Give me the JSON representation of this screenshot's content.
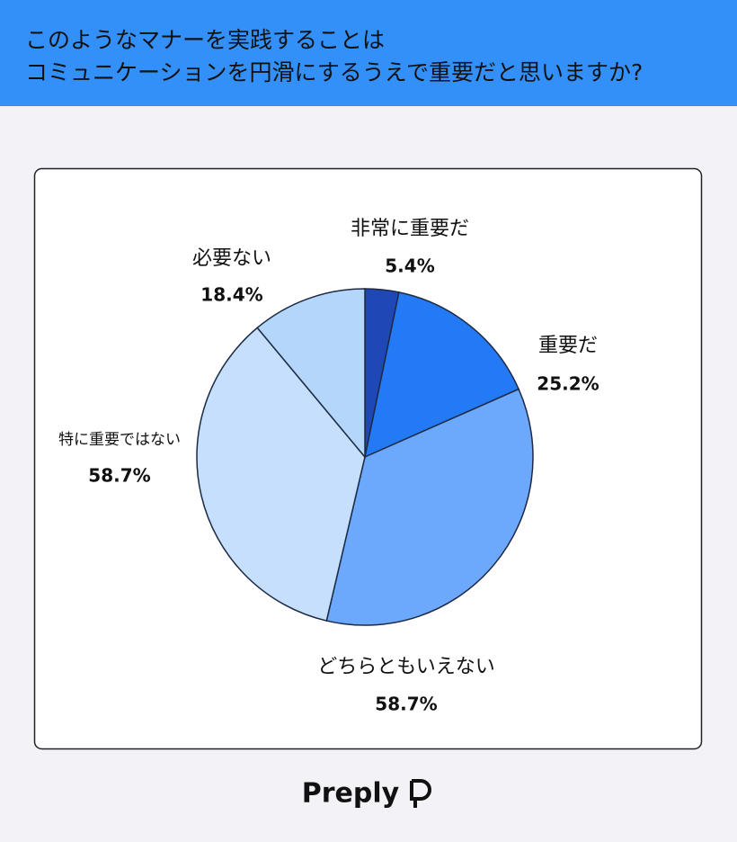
{
  "chart_data": {
    "type": "pie",
    "title": [
      "このようなマナーを実践することは",
      "コミュニケーションを円滑にするうえで重要だと思いますか?"
    ],
    "categories": [
      "非常に重要だ",
      "重要だ",
      "どちらともいえない",
      "特に重要ではない",
      "必要ない"
    ],
    "values": [
      5.4,
      25.2,
      58.7,
      58.7,
      18.4
    ],
    "value_labels": [
      "5.4%",
      "25.2%",
      "58.7%",
      "58.7%",
      "18.4%"
    ],
    "colors": [
      "#1f47b5",
      "#2479f5",
      "#6ca8fc",
      "#c5dffd",
      "#b4d6fb"
    ]
  },
  "logo": "Preply"
}
